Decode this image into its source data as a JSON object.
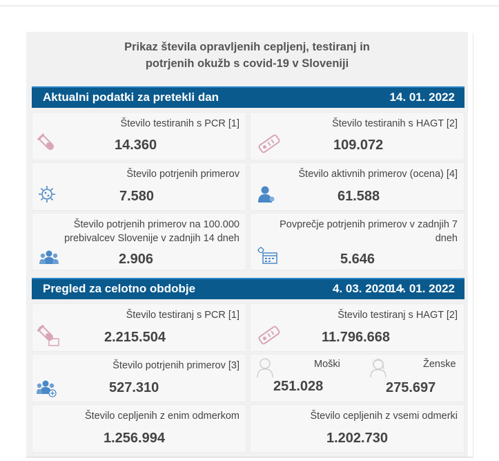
{
  "title": {
    "line1": "Prikaz števila opravljenih cepljenj, testiranj in",
    "line2": "potrjenih okužb s covid-19 v Sloveniji"
  },
  "daily": {
    "heading": "Aktualni podatki za pretekli dan",
    "date": "14. 01. 2022",
    "pcr_label": "Število testiranih s PCR [1]",
    "pcr_value": "14.360",
    "hagt_label": "Število testiranih s HAGT [2]",
    "hagt_value": "109.072",
    "confirmed_label": "Število potrjenih primerov",
    "confirmed_value": "7.580",
    "active_label": "Število aktivnih primerov (ocena) [4]",
    "active_value": "61.588",
    "per100k_label1": "Število potrjenih primerov na 100.000",
    "per100k_label2": "prebivalcev Slovenije v zadnjih 14 dneh",
    "per100k_value": "2.906",
    "avg7_label1": "Povprečje potrjenih primerov v zadnjih 7",
    "avg7_label2": "dneh",
    "avg7_value": "5.646"
  },
  "overall": {
    "heading": "Pregled za celotno obdobje",
    "date_from": "4. 03. 2020",
    "dash": "-",
    "date_to": "14. 01. 2022",
    "pcr_label": "Število testiranj s PCR [1]",
    "pcr_value": "2.215.504",
    "hagt_label": "Število testiranj s HAGT [2]",
    "hagt_value": "11.796.668",
    "confirmed_label": "Število potrjenih primerov [3]",
    "confirmed_value": "527.310",
    "male_label": "Moški",
    "male_value": "251.028",
    "female_label": "Ženske",
    "female_value": "275.697",
    "vacc1_label": "Število cepljenih z enim odmerkom",
    "vacc1_value": "1.256.994",
    "vaccall_label": "Število cepljenih z vsemi odmerki",
    "vaccall_value": "1.202.730"
  },
  "colors": {
    "bar": "#0a5a8e",
    "accent_pink": "#d9a3b8",
    "accent_blue": "#4a88c8"
  }
}
